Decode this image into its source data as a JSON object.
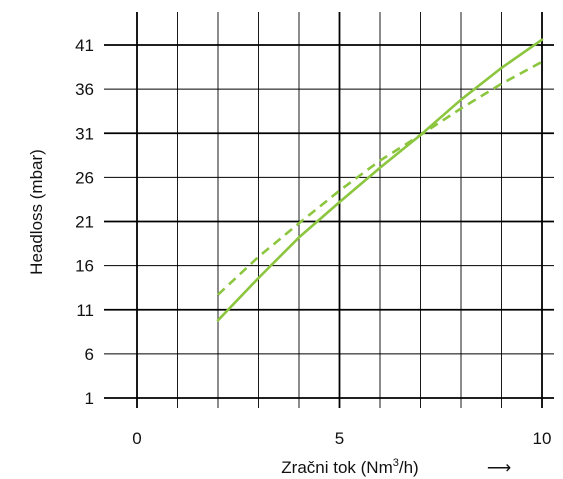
{
  "chart_data": {
    "type": "line",
    "title": "",
    "xlabel": "Zračni tok (Nm",
    "xlabel_sup": "3",
    "xlabel_tail": "/h)",
    "xlabel_arrow": "⟶",
    "ylabel": "Headloss (mbar)",
    "xlim": [
      0,
      10
    ],
    "ylim": [
      1,
      41
    ],
    "x_ticks": [
      "0",
      "5",
      "10"
    ],
    "y_ticks": [
      "1",
      "6",
      "11",
      "16",
      "21",
      "26",
      "31",
      "36",
      "41"
    ],
    "grid": true,
    "series_color": "#8cc63f",
    "series": [
      {
        "style": "solid",
        "x": [
          2,
          3,
          4,
          5,
          6,
          7,
          8,
          9,
          10
        ],
        "y": [
          9.8,
          14.6,
          19.2,
          23.2,
          27.1,
          30.8,
          34.8,
          38.4,
          41.6
        ]
      },
      {
        "style": "dashed",
        "x": [
          2,
          3,
          4,
          5,
          6,
          7,
          8,
          9,
          10
        ],
        "y": [
          12.7,
          17.0,
          20.8,
          24.5,
          27.9,
          30.8,
          33.8,
          36.6,
          39.1
        ]
      }
    ]
  }
}
